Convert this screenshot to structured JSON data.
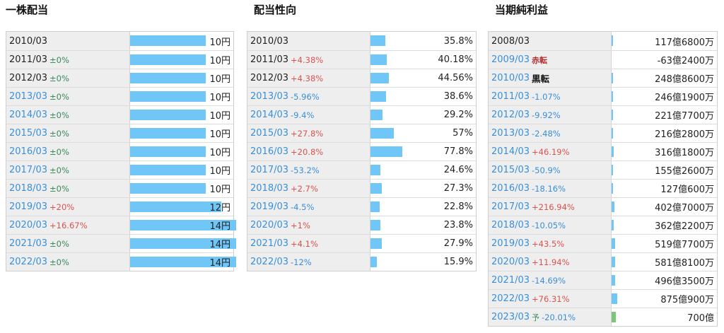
{
  "panels": [
    {
      "title": "一株配当",
      "rows": [
        {
          "year": "2010/03",
          "change": "",
          "cls": "",
          "value": "10円",
          "ratio": 0.714
        },
        {
          "year": "2011/03",
          "change": "±0%",
          "cls": "zero",
          "value": "10円",
          "ratio": 0.714
        },
        {
          "year": "2012/03",
          "change": "±0%",
          "cls": "zero",
          "value": "10円",
          "ratio": 0.714
        },
        {
          "year": "2013/03",
          "change": "±0%",
          "cls": "zero",
          "value": "10円",
          "ratio": 0.714
        },
        {
          "year": "2014/03",
          "change": "±0%",
          "cls": "zero",
          "value": "10円",
          "ratio": 0.714
        },
        {
          "year": "2015/03",
          "change": "±0%",
          "cls": "zero",
          "value": "10円",
          "ratio": 0.714
        },
        {
          "year": "2016/03",
          "change": "±0%",
          "cls": "zero",
          "value": "10円",
          "ratio": 0.714
        },
        {
          "year": "2017/03",
          "change": "±0%",
          "cls": "zero",
          "value": "10円",
          "ratio": 0.714
        },
        {
          "year": "2018/03",
          "change": "±0%",
          "cls": "zero",
          "value": "10円",
          "ratio": 0.714
        },
        {
          "year": "2019/03",
          "change": "+20%",
          "cls": "pos",
          "value": "12円",
          "ratio": 0.857
        },
        {
          "year": "2020/03",
          "change": "+16.67%",
          "cls": "pos",
          "value": "14円",
          "ratio": 1.0
        },
        {
          "year": "2021/03",
          "change": "±0%",
          "cls": "zero",
          "value": "14円",
          "ratio": 1.0
        },
        {
          "year": "2022/03",
          "change": "±0%",
          "cls": "zero",
          "value": "14円",
          "ratio": 1.0
        }
      ]
    },
    {
      "title": "配当性向",
      "rows": [
        {
          "year": "2010/03",
          "change": "",
          "cls": "",
          "value": "35.8%",
          "ratio": 0.358
        },
        {
          "year": "2011/03",
          "change": "+4.38%",
          "cls": "pos",
          "value": "40.18%",
          "ratio": 0.4018
        },
        {
          "year": "2012/03",
          "change": "+4.38%",
          "cls": "pos",
          "value": "44.56%",
          "ratio": 0.4456
        },
        {
          "year": "2013/03",
          "change": "-5.96%",
          "cls": "neg",
          "value": "38.6%",
          "ratio": 0.386
        },
        {
          "year": "2014/03",
          "change": "-9.4%",
          "cls": "neg",
          "value": "29.2%",
          "ratio": 0.292
        },
        {
          "year": "2015/03",
          "change": "+27.8%",
          "cls": "pos",
          "value": "57%",
          "ratio": 0.57
        },
        {
          "year": "2016/03",
          "change": "+20.8%",
          "cls": "pos",
          "value": "77.8%",
          "ratio": 0.778
        },
        {
          "year": "2017/03",
          "change": "-53.2%",
          "cls": "neg",
          "value": "24.6%",
          "ratio": 0.246
        },
        {
          "year": "2018/03",
          "change": "+2.7%",
          "cls": "pos",
          "value": "27.3%",
          "ratio": 0.273
        },
        {
          "year": "2019/03",
          "change": "-4.5%",
          "cls": "neg",
          "value": "22.8%",
          "ratio": 0.228
        },
        {
          "year": "2020/03",
          "change": "+1%",
          "cls": "pos",
          "value": "23.8%",
          "ratio": 0.238
        },
        {
          "year": "2021/03",
          "change": "+4.1%",
          "cls": "pos",
          "value": "27.9%",
          "ratio": 0.279
        },
        {
          "year": "2022/03",
          "change": "-12%",
          "cls": "neg",
          "value": "15.9%",
          "ratio": 0.159
        }
      ]
    },
    {
      "title": "当期純利益",
      "rows": [
        {
          "year": "2008/03",
          "change": "",
          "cls": "",
          "value": "117億6800万",
          "ratio": 0.134
        },
        {
          "year": "2009/03",
          "tag": "赤転",
          "tagcls": "red",
          "change": "",
          "cls": "",
          "value": "-63億2400万",
          "ratio": 0.0
        },
        {
          "year": "2010/03",
          "tag": "黒転",
          "tagcls": "black",
          "change": "",
          "cls": "",
          "value": "248億8600万",
          "ratio": 0.284
        },
        {
          "year": "2011/03",
          "change": "-1.07%",
          "cls": "neg",
          "value": "246億1900万",
          "ratio": 0.281
        },
        {
          "year": "2012/03",
          "change": "-9.92%",
          "cls": "neg",
          "value": "221億7700万",
          "ratio": 0.253
        },
        {
          "year": "2013/03",
          "change": "-2.48%",
          "cls": "neg",
          "value": "216億2800万",
          "ratio": 0.247
        },
        {
          "year": "2014/03",
          "change": "+46.19%",
          "cls": "pos",
          "value": "316億1800万",
          "ratio": 0.361
        },
        {
          "year": "2015/03",
          "change": "-50.9%",
          "cls": "neg",
          "value": "155億2600万",
          "ratio": 0.177
        },
        {
          "year": "2016/03",
          "change": "-18.16%",
          "cls": "neg",
          "value": "127億600万",
          "ratio": 0.145
        },
        {
          "year": "2017/03",
          "change": "+216.94%",
          "cls": "pos",
          "value": "402億7000万",
          "ratio": 0.46
        },
        {
          "year": "2018/03",
          "change": "-10.05%",
          "cls": "neg",
          "value": "362億2200万",
          "ratio": 0.414
        },
        {
          "year": "2019/03",
          "change": "+43.5%",
          "cls": "pos",
          "value": "519億7700万",
          "ratio": 0.594
        },
        {
          "year": "2020/03",
          "change": "+11.94%",
          "cls": "pos",
          "value": "581億8100万",
          "ratio": 0.665
        },
        {
          "year": "2021/03",
          "change": "-14.69%",
          "cls": "neg",
          "value": "496億3500万",
          "ratio": 0.567
        },
        {
          "year": "2022/03",
          "change": "+76.31%",
          "cls": "pos",
          "value": "875億900万",
          "ratio": 1.0
        },
        {
          "year": "2023/03",
          "tag": "予",
          "tagcls": "green",
          "change": "-20.01%",
          "cls": "neg",
          "value": "700億",
          "ratio": 0.8,
          "forecast": true
        }
      ]
    }
  ],
  "colors": {
    "bar": "#6fc6f7",
    "forecast_bar": "#7dc47d",
    "positive": "#d9534f",
    "negative": "#3a8fd8",
    "zero": "#3b8a5a"
  }
}
